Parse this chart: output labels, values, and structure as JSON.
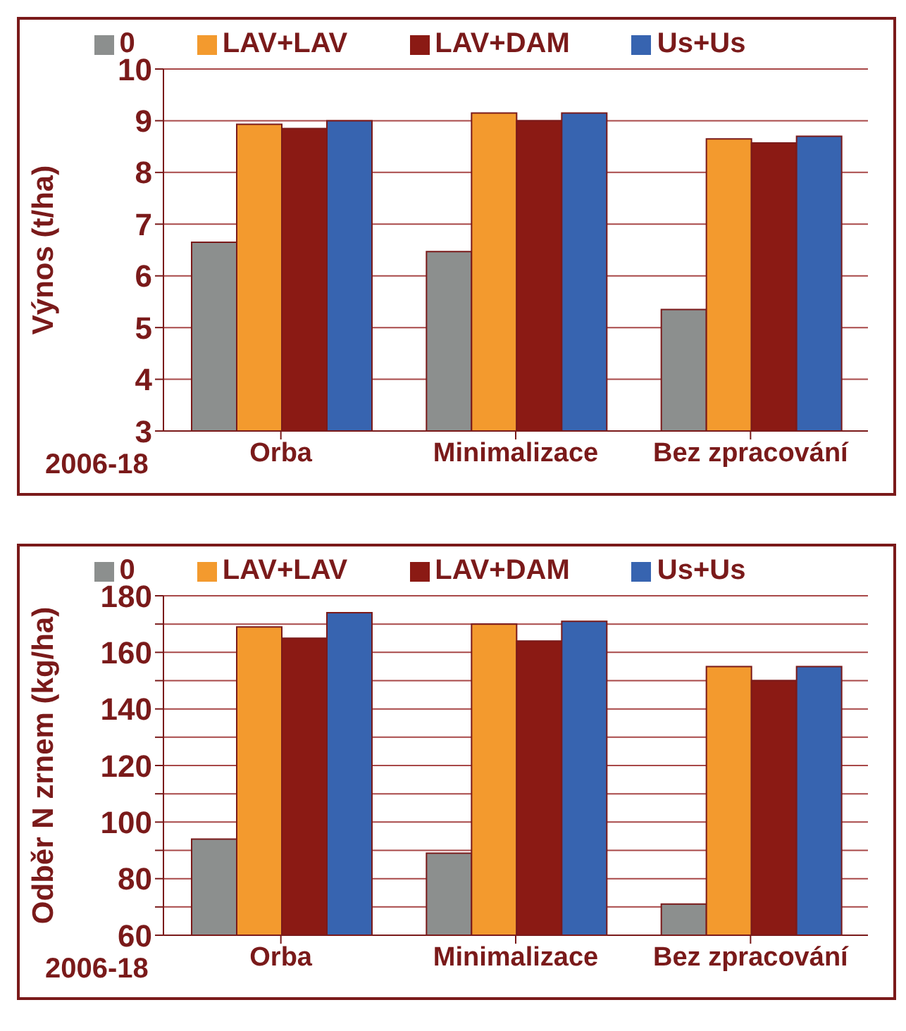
{
  "chart_data": [
    {
      "type": "bar",
      "ylabel": "Výnos (t/ha)",
      "categories": [
        "Orba",
        "Minimalizace",
        "Bez zpracování"
      ],
      "series": [
        {
          "name": "0",
          "color": "#8c8f8e",
          "values": [
            6.65,
            6.47,
            5.35
          ]
        },
        {
          "name": "LAV+LAV",
          "color": "#f39a2e",
          "values": [
            8.93,
            9.15,
            8.65
          ]
        },
        {
          "name": "LAV+DAM",
          "color": "#8b1a14",
          "values": [
            8.85,
            9.0,
            8.57
          ]
        },
        {
          "name": "Us+Us",
          "color": "#3764b0",
          "values": [
            9.0,
            9.15,
            8.7
          ]
        }
      ],
      "ylim": [
        3,
        10
      ],
      "yticks": [
        3,
        4,
        5,
        6,
        7,
        8,
        9,
        10
      ],
      "grid": "y",
      "legend": "top",
      "annotations": [
        "2006-18"
      ]
    },
    {
      "type": "bar",
      "ylabel": "Odběr N zrnem (kg/ha)",
      "categories": [
        "Orba",
        "Minimalizace",
        "Bez zpracování"
      ],
      "series": [
        {
          "name": "0",
          "color": "#8c8f8e",
          "values": [
            94,
            89,
            71
          ]
        },
        {
          "name": "LAV+LAV",
          "color": "#f39a2e",
          "values": [
            169,
            170,
            155
          ]
        },
        {
          "name": "LAV+DAM",
          "color": "#8b1a14",
          "values": [
            165,
            164,
            150
          ]
        },
        {
          "name": "Us+Us",
          "color": "#3764b0",
          "values": [
            174,
            171,
            155
          ]
        }
      ],
      "ylim": [
        60,
        180
      ],
      "yticks": [
        60,
        {
          "value": 70,
          "label": null
        },
        80,
        {
          "value": 90,
          "label": null
        },
        100,
        {
          "value": 110,
          "label": null
        },
        120,
        {
          "value": 130,
          "label": null
        },
        140,
        {
          "value": 150,
          "label": null
        },
        160,
        {
          "value": 170,
          "label": null
        },
        180
      ],
      "grid": "y",
      "legend": "top",
      "annotations": [
        "2006-18"
      ]
    }
  ]
}
